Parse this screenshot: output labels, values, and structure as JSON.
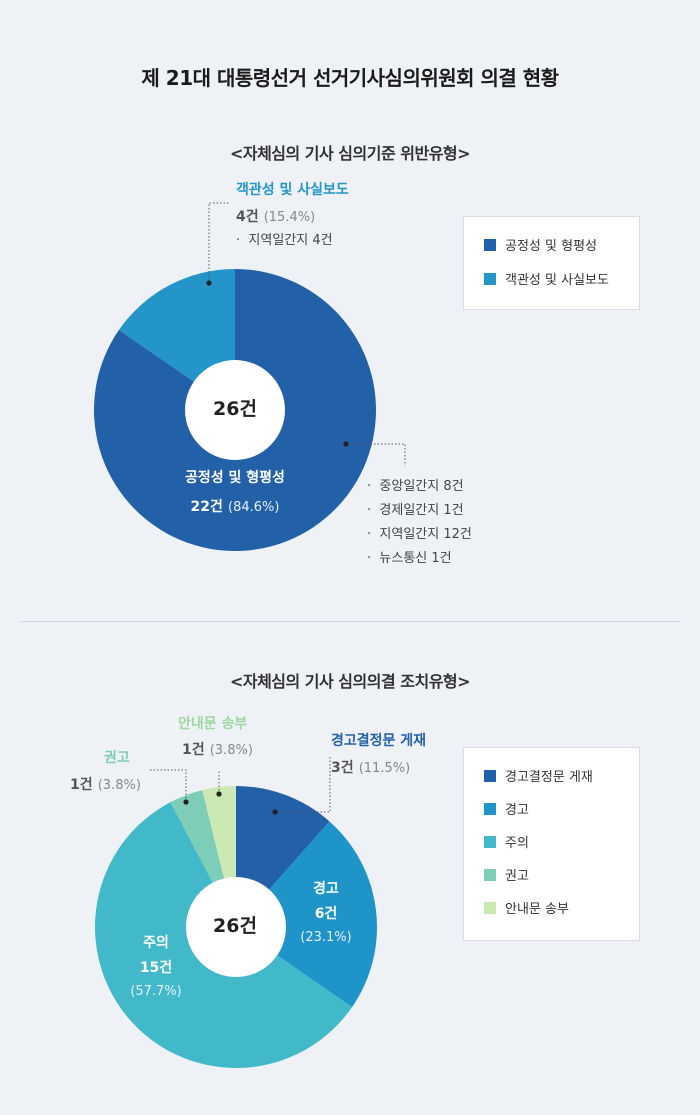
{
  "page": {
    "title": "제 21대 대통령선거 선거기사심의위원회 의결 현황"
  },
  "chart_data": [
    {
      "type": "pie",
      "variant": "donut",
      "title": "<자체심의 기사 심의기준 위반유형>",
      "total_label": "26건",
      "series": [
        {
          "name": "공정성 및 형평성",
          "value": 22,
          "count_label": "22건",
          "percent_label": "(84.6%)",
          "color": "#2260a8",
          "details": [
            "중앙일간지 8건",
            "경제일간지 1건",
            "지역일간지 12건",
            "뉴스통신 1건"
          ]
        },
        {
          "name": "객관성 및 사실보도",
          "value": 4,
          "count_label": "4건",
          "percent_label": "(15.4%)",
          "color": "#2395c9",
          "details": [
            "지역일간지 4건"
          ]
        }
      ],
      "legend": [
        "공정성 및 형평성",
        "객관성 및 사실보도"
      ],
      "legend_position": "right"
    },
    {
      "type": "pie",
      "variant": "donut",
      "title": "<자체심의 기사 심의의결 조치유형>",
      "total_label": "26건",
      "series": [
        {
          "name": "경고결정문 게재",
          "value": 3,
          "count_label": "3건",
          "percent_label": "(11.5%)",
          "color": "#2260a8"
        },
        {
          "name": "경고",
          "value": 6,
          "count_label": "6건",
          "percent_label": "(23.1%)",
          "color": "#1f94c8"
        },
        {
          "name": "주의",
          "value": 15,
          "count_label": "15건",
          "percent_label": "(57.7%)",
          "color": "#42b9c9"
        },
        {
          "name": "권고",
          "value": 1,
          "count_label": "1건",
          "percent_label": "(3.8%)",
          "color": "#7dcdb9"
        },
        {
          "name": "안내문 송부",
          "value": 1,
          "count_label": "1건",
          "percent_label": "(3.8%)",
          "color": "#cbe9b3"
        }
      ],
      "legend": [
        "경고결정문 게재",
        "경고",
        "주의",
        "권고",
        "안내문 송부"
      ],
      "legend_position": "right"
    }
  ]
}
